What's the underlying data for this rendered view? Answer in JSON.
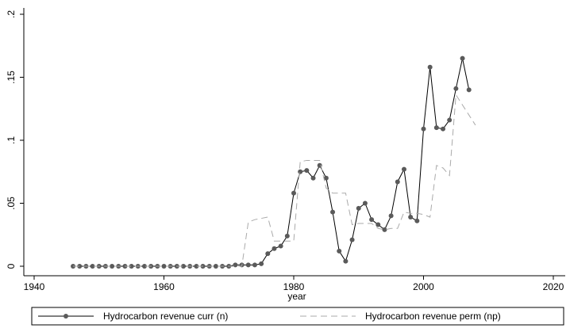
{
  "chart_data": {
    "type": "line",
    "xlabel": "year",
    "xlim": [
      1940,
      2020
    ],
    "xticks": [
      1940,
      1960,
      1980,
      2000,
      2020
    ],
    "ylim": [
      0,
      0.2
    ],
    "yticks": [
      0,
      {
        "value": 0.05,
        "label": ".05"
      },
      {
        "value": 0.1,
        "label": ".1"
      },
      {
        "value": 0.15,
        "label": ".15"
      },
      {
        "value": 0.2,
        "label": ".2"
      }
    ],
    "series": [
      {
        "name": "Hydrocarbon revenue curr (n)",
        "color": "#000000",
        "marker_color": "#5a5a5a",
        "style": "solid",
        "markers": true,
        "x": [
          1946,
          1947,
          1948,
          1949,
          1950,
          1951,
          1952,
          1953,
          1954,
          1955,
          1956,
          1957,
          1958,
          1959,
          1960,
          1961,
          1962,
          1963,
          1964,
          1965,
          1966,
          1967,
          1968,
          1969,
          1970,
          1971,
          1972,
          1973,
          1974,
          1975,
          1976,
          1977,
          1978,
          1979,
          1980,
          1981,
          1982,
          1983,
          1984,
          1985,
          1986,
          1987,
          1988,
          1989,
          1990,
          1991,
          1992,
          1993,
          1994,
          1995,
          1996,
          1997,
          1998,
          1999,
          2000,
          2001,
          2002,
          2003,
          2004,
          2005,
          2006,
          2007
        ],
        "values": [
          0,
          0,
          0,
          0,
          0,
          0,
          0,
          0,
          0,
          0,
          0,
          0,
          0,
          0,
          0,
          0,
          0,
          0,
          0,
          0,
          0,
          0,
          0,
          0,
          0,
          0.001,
          0.001,
          0.001,
          0.001,
          0.002,
          0.01,
          0.014,
          0.016,
          0.024,
          0.058,
          0.075,
          0.076,
          0.07,
          0.08,
          0.07,
          0.043,
          0.012,
          0.004,
          0.021,
          0.046,
          0.05,
          0.037,
          0.033,
          0.029,
          0.04,
          0.067,
          0.077,
          0.039,
          0.036,
          0.109,
          0.158,
          0.11,
          0.109,
          0.116,
          0.141,
          0.165,
          0.14
        ]
      },
      {
        "name": "Hydrocarbon revenue perm (np)",
        "color": "#aaaaaa",
        "style": "dashed",
        "markers": false,
        "x": [
          1946,
          1960,
          1972,
          1973,
          1974,
          1975,
          1976,
          1977,
          1978,
          1979,
          1980,
          1981,
          1982,
          1983,
          1984,
          1985,
          1986,
          1987,
          1988,
          1989,
          1990,
          1991,
          1992,
          1993,
          1994,
          1995,
          1996,
          1997,
          1998,
          1999,
          2000,
          2001,
          2002,
          2003,
          2004,
          2005,
          2006,
          2007,
          2008
        ],
        "values": [
          0,
          0,
          0,
          0.035,
          0.037,
          0.038,
          0.039,
          0.02,
          0.02,
          0.02,
          0.02,
          0.083,
          0.084,
          0.084,
          0.084,
          0.062,
          0.058,
          0.058,
          0.058,
          0.033,
          0.034,
          0.034,
          0.034,
          0.03,
          0.029,
          0.03,
          0.03,
          0.043,
          0.042,
          0.042,
          0.041,
          0.039,
          0.08,
          0.078,
          0.072,
          0.136,
          0.128,
          0.12,
          0.112
        ]
      }
    ]
  }
}
